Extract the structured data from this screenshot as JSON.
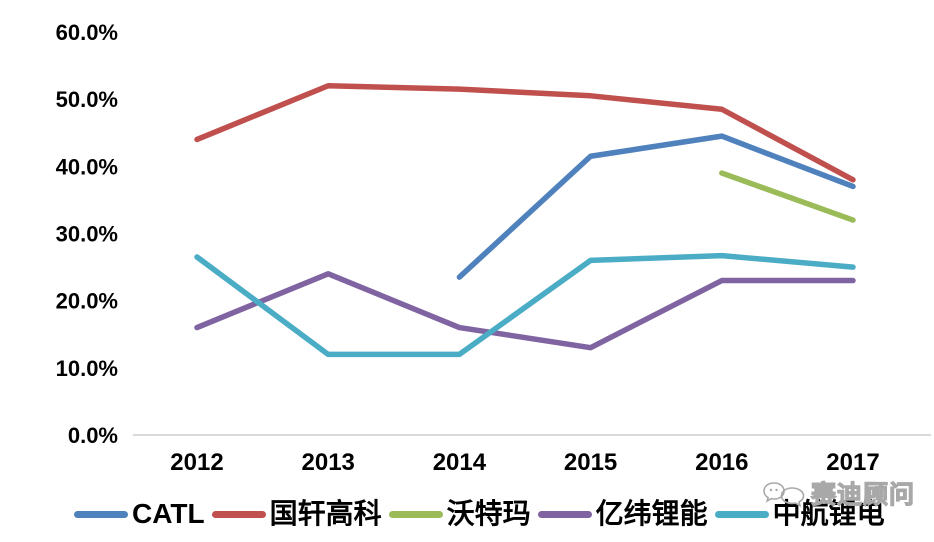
{
  "chart": {
    "background": "#ffffff",
    "axis_color": "#d9d9d9",
    "label_color": "#000000"
  },
  "chart_data": {
    "type": "line",
    "title": "",
    "xlabel": "",
    "ylabel": "",
    "categories": [
      "2012",
      "2013",
      "2014",
      "2015",
      "2016",
      "2017"
    ],
    "series": [
      {
        "name": "CATL",
        "color": "#4f81bd",
        "values": [
          null,
          null,
          23.5,
          41.5,
          44.5,
          37
        ]
      },
      {
        "name": "国轩高科",
        "color": "#c0504d",
        "values": [
          44,
          52,
          51.5,
          50.5,
          48.5,
          38
        ]
      },
      {
        "name": "沃特玛",
        "color": "#9bbb59",
        "values": [
          null,
          null,
          null,
          null,
          39,
          32
        ]
      },
      {
        "name": "亿纬锂能",
        "color": "#8064a2",
        "values": [
          16,
          24,
          16,
          13,
          23,
          23
        ]
      },
      {
        "name": "中航锂电",
        "color": "#4bacc6",
        "values": [
          26.5,
          12,
          12,
          26,
          26.7,
          25
        ]
      }
    ],
    "ylim": [
      0,
      60
    ],
    "ytick_step": 10,
    "ytick_labels": [
      "0.0%",
      "10.0%",
      "20.0%",
      "30.0%",
      "40.0%",
      "50.0%",
      "60.0%"
    ],
    "grid": false,
    "legend_position": "bottom"
  },
  "watermark": {
    "text": "赛迪顾问",
    "color": "#a8a8a8"
  }
}
